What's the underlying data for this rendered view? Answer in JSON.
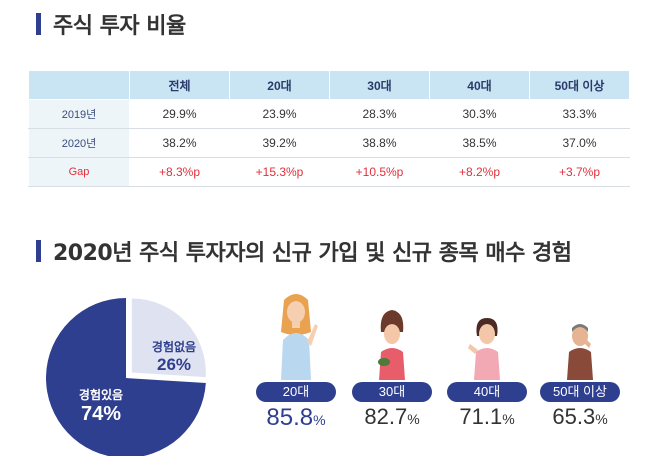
{
  "section1": {
    "title": "주식 투자 비율"
  },
  "table": {
    "headers": [
      "전체",
      "20대",
      "30대",
      "40대",
      "50대 이상"
    ],
    "rows": [
      {
        "label": "2019년",
        "values": [
          "29.9%",
          "23.9%",
          "28.3%",
          "30.3%",
          "33.3%"
        ]
      },
      {
        "label": "2020년",
        "values": [
          "38.2%",
          "39.2%",
          "38.8%",
          "38.5%",
          "37.0%"
        ]
      },
      {
        "label": "Gap",
        "values": [
          "+8.3%p",
          "+15.3%p",
          "+10.5%p",
          "+8.2%p",
          "+3.7%p"
        ]
      }
    ]
  },
  "section2": {
    "title": "2020년 주식 투자자의 신규 가입 및 신규 종목 매수 경험"
  },
  "pie": {
    "experienced": {
      "label": "경험있음",
      "value": "74%",
      "share": 74
    },
    "not_experienced": {
      "label": "경험없음",
      "value": "26%",
      "share": 26
    }
  },
  "age_groups": [
    {
      "label": "20대",
      "value": "85.8",
      "unit": "%"
    },
    {
      "label": "30대",
      "value": "82.7",
      "unit": "%"
    },
    {
      "label": "40대",
      "value": "71.1",
      "unit": "%"
    },
    {
      "label": "50대 이상",
      "value": "65.3",
      "unit": "%"
    }
  ],
  "colors": {
    "navy": "#2f3f8f",
    "light_slice": "#dfe3f1",
    "header_bg": "#c9e5f3",
    "gap_red": "#e0303c"
  },
  "chart_data": {
    "type": "pie",
    "categories": [
      "경험있음",
      "경험없음"
    ],
    "values": [
      74,
      26
    ]
  }
}
